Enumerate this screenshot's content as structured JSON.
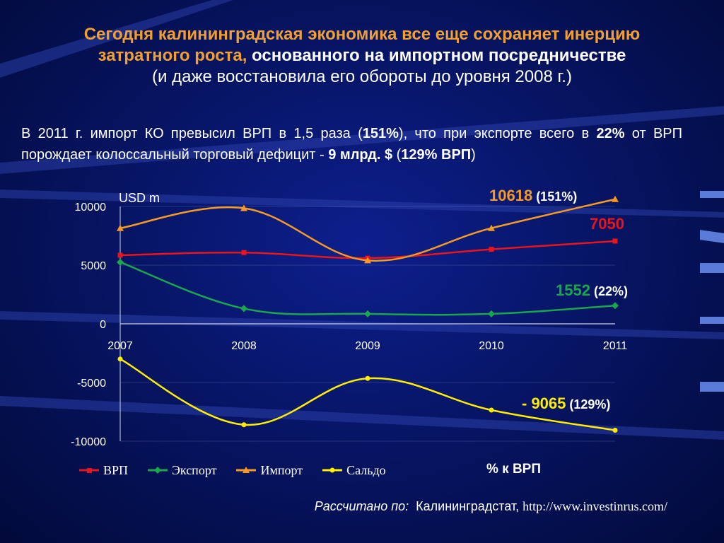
{
  "title": {
    "line1": "Сегодня калининградская экономика все еще сохраняет инерцию",
    "line2_orange": "затратного роста, ",
    "line2_white": "основанного на импортном  посредничестве",
    "line3": "(и даже восстановила  его обороты до уровня 2008 г.)"
  },
  "paragraph": {
    "p1": "В  2011 г.  импорт   КО  превысил  ВРП  в 1,5 раза (",
    "b1": "151%",
    "p2": "),  что  при экспорте  всего  в ",
    "b2": "22%",
    "p3": " от  ВРП  порождает колоссальный торговый дефицит  -  ",
    "b3": "9 млрд. $",
    "p4": "  (",
    "b4": "129% ВРП",
    "p5": ")"
  },
  "chart_data": {
    "type": "line",
    "unit_label": "USD  m",
    "categories": [
      "2007",
      "2008",
      "2009",
      "2010",
      "2011"
    ],
    "ylim": [
      -10000,
      10000
    ],
    "yticks": [
      "10000",
      "5000",
      "0",
      "-5000",
      "-10000"
    ],
    "series": [
      {
        "name": "ВРП",
        "color": "#e8151b",
        "marker": "square",
        "values": [
          5850,
          6070,
          5600,
          6350,
          7050
        ]
      },
      {
        "name": "Экспорт",
        "color": "#1aa64a",
        "marker": "diamond",
        "values": [
          5250,
          1300,
          850,
          850,
          1552
        ]
      },
      {
        "name": "Импорт",
        "color": "#f59a23",
        "marker": "triangle",
        "values": [
          8150,
          9850,
          5400,
          8150,
          10618
        ]
      },
      {
        "name": "Сальдо",
        "color": "#ffee00",
        "marker": "circle",
        "values": [
          -3000,
          -8600,
          -4650,
          -7350,
          -9065
        ]
      }
    ],
    "annotations": [
      {
        "value": "10618",
        "suffix": " (151%)",
        "color": "#f59a23"
      },
      {
        "value": "7050",
        "suffix": "",
        "color": "#e8151b"
      },
      {
        "value": "1552",
        "suffix": " (22%)",
        "color": "#1aa64a"
      },
      {
        "value": "- 9065",
        "suffix": "  (129%)",
        "color": "#ffee00"
      }
    ],
    "grid": true
  },
  "legend": {
    "items": [
      "ВРП",
      "Экспорт",
      "Импорт",
      "Сальдо"
    ],
    "pct_label": "% к ВРП"
  },
  "source": {
    "label": "Рассчитано по:",
    "text": "Калининградстат, ",
    "url": "http://www.investinrus.com/"
  }
}
